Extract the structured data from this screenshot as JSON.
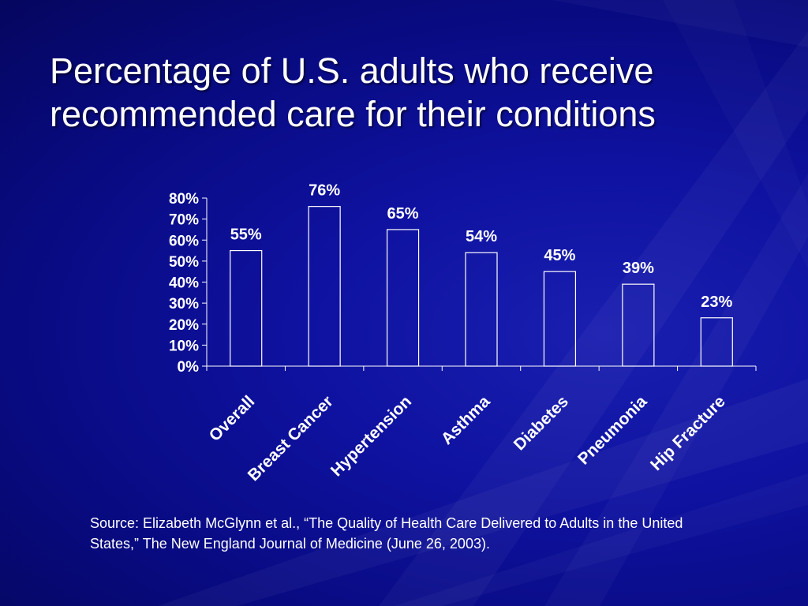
{
  "slide": {
    "title_line1": "Percentage of U.S. adults who receive",
    "title_line2": "recommended care for their conditions",
    "source": "Source: Elizabeth McGlynn et al., “The Quality of Health Care Delivered to Adults in the United States,” The New England Journal of Medicine (June 26, 2003).",
    "background_color": "#0a0c8c",
    "text_color": "#ffffff"
  },
  "chart_data": {
    "type": "bar",
    "categories": [
      "Overall",
      "Breast Cancer",
      "Hypertension",
      "Asthma",
      "Diabetes",
      "Pneumonia",
      "Hip Fracture"
    ],
    "values": [
      55,
      76,
      65,
      54,
      45,
      39,
      23
    ],
    "data_labels": [
      "55%",
      "76%",
      "65%",
      "54%",
      "45%",
      "39%",
      "23%"
    ],
    "y_ticks": [
      "0%",
      "10%",
      "20%",
      "30%",
      "40%",
      "50%",
      "60%",
      "70%",
      "80%"
    ],
    "ylim": [
      0,
      80
    ],
    "grid": false,
    "legend": "none",
    "bar_fill": "none",
    "bar_stroke": "#ffffff"
  }
}
